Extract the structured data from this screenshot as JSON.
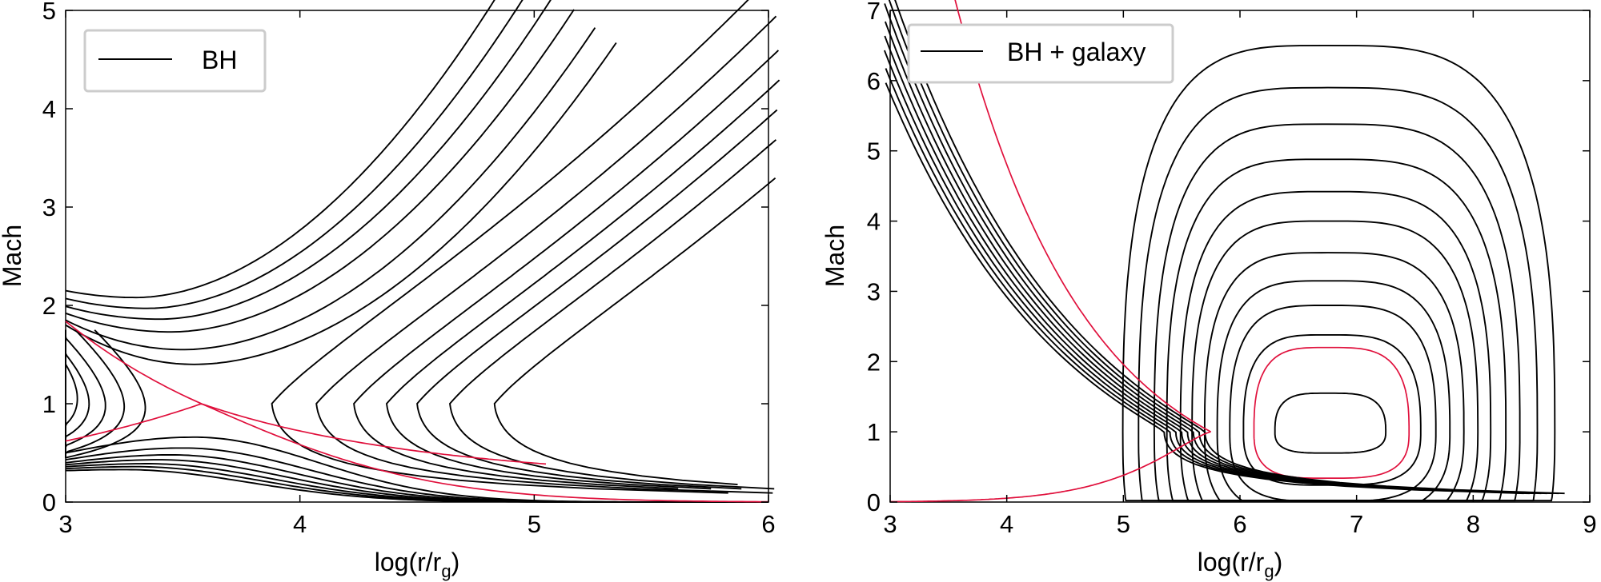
{
  "figure": {
    "panels": 2
  },
  "chart_data": [
    {
      "type": "line",
      "title": "",
      "xlabel": "log(r/r",
      "xlabel_sub": "g",
      "xlabel_close": ")",
      "ylabel": "Mach",
      "xlim": [
        3,
        6
      ],
      "ylim": [
        0,
        5
      ],
      "xticks": [
        "3",
        "4",
        "5",
        "6"
      ],
      "yticks": [
        "0",
        "1",
        "2",
        "3",
        "4",
        "5"
      ],
      "grid": false,
      "legend": {
        "position": "top-left",
        "entries": [
          "BH"
        ]
      },
      "colors": {
        "family": "#000000",
        "critical": "#e0103c"
      },
      "critical_point": {
        "x": 3.58,
        "y": 1.0
      },
      "series": [
        {
          "group": "inner-closed",
          "x0": 3.0,
          "m0": 1.1
        },
        {
          "group": "inner-closed",
          "x0": 3.05,
          "m0": 1.05
        },
        {
          "group": "inner-closed",
          "x0": 3.1,
          "m0": 1.0
        },
        {
          "group": "inner-closed",
          "x0": 3.17,
          "m0": 0.98
        },
        {
          "group": "inner-closed",
          "x0": 3.25,
          "m0": 0.97
        },
        {
          "group": "inner-closed",
          "x0": 3.34,
          "m0": 0.96
        },
        {
          "group": "outer-accretion",
          "x0": 3.88,
          "m0": 1.0
        },
        {
          "group": "outer-accretion",
          "x0": 4.07,
          "m0": 1.0
        },
        {
          "group": "outer-accretion",
          "x0": 4.23,
          "m0": 1.0
        },
        {
          "group": "outer-accretion",
          "x0": 4.37,
          "m0": 1.0
        },
        {
          "group": "outer-accretion",
          "x0": 4.5,
          "m0": 1.0
        },
        {
          "group": "outer-accretion",
          "x0": 4.64,
          "m0": 1.0
        },
        {
          "group": "outer-accretion",
          "x0": 4.83,
          "m0": 1.0
        },
        {
          "group": "top",
          "y0": 2.15,
          "xmin": 3.3,
          "ymin": 2.08,
          "xend": 4.85
        },
        {
          "group": "top",
          "y0": 2.07,
          "xmin": 3.35,
          "ymin": 1.97,
          "xend": 4.94
        },
        {
          "group": "top",
          "y0": 1.99,
          "xmin": 3.4,
          "ymin": 1.86,
          "xend": 5.03
        },
        {
          "group": "top",
          "y0": 1.92,
          "xmin": 3.45,
          "ymin": 1.73,
          "xend": 5.12
        },
        {
          "group": "top",
          "y0": 1.85,
          "xmin": 3.5,
          "ymin": 1.55,
          "xend": 5.21
        },
        {
          "group": "top",
          "y0": 1.8,
          "xmin": 3.55,
          "ymin": 1.4,
          "xend": 5.3
        },
        {
          "group": "bottom",
          "y0": 0.5,
          "peak": 0.66,
          "xp": 3.55
        },
        {
          "group": "bottom",
          "y0": 0.43,
          "peak": 0.55,
          "xp": 3.5
        },
        {
          "group": "bottom",
          "y0": 0.4,
          "peak": 0.48,
          "xp": 3.45
        },
        {
          "group": "bottom",
          "y0": 0.38,
          "peak": 0.43,
          "xp": 3.4
        },
        {
          "group": "bottom",
          "y0": 0.36,
          "peak": 0.39,
          "xp": 3.35
        },
        {
          "group": "bottom",
          "y0": 0.34,
          "peak": 0.36,
          "xp": 3.3
        },
        {
          "group": "bottom",
          "y0": 0.32,
          "peak": 0.33,
          "xp": 3.25
        }
      ]
    },
    {
      "type": "line",
      "title": "",
      "xlabel": "log(r/r",
      "xlabel_sub": "g",
      "xlabel_close": ")",
      "ylabel": "Mach",
      "xlim": [
        3,
        9
      ],
      "ylim": [
        0,
        7
      ],
      "xticks": [
        "3",
        "4",
        "5",
        "6",
        "7",
        "8",
        "9"
      ],
      "yticks": [
        "0",
        "1",
        "2",
        "3",
        "4",
        "5",
        "6",
        "7"
      ],
      "grid": false,
      "legend": {
        "position": "top-left",
        "entries": [
          "BH + galaxy"
        ]
      },
      "colors": {
        "family": "#000000",
        "critical": "#e0103c"
      },
      "critical_point": {
        "x": 5.75,
        "y": 1.0
      },
      "series": [
        {
          "group": "closed-loop",
          "top": 1.55,
          "right_x": 7.25
        },
        {
          "group": "closed-loop",
          "top": 2.2,
          "right_x": 7.45,
          "critical": true
        },
        {
          "group": "closed-loop",
          "top": 2.38,
          "right_x": 7.55
        },
        {
          "group": "closed-loop",
          "top": 2.8,
          "right_x": 7.68
        },
        {
          "group": "closed-loop",
          "top": 3.15,
          "right_x": 7.8
        },
        {
          "group": "closed-loop",
          "top": 3.55,
          "right_x": 7.92
        },
        {
          "group": "closed-loop",
          "top": 4.0,
          "right_x": 8.04
        },
        {
          "group": "closed-loop",
          "top": 4.42,
          "right_x": 8.15
        },
        {
          "group": "closed-loop",
          "top": 4.88,
          "right_x": 8.28
        },
        {
          "group": "closed-loop",
          "top": 5.38,
          "right_x": 8.4
        },
        {
          "group": "closed-loop",
          "top": 5.9,
          "right_x": 8.55
        },
        {
          "group": "closed-loop",
          "top": 6.5,
          "right_x": 8.7
        },
        {
          "group": "inner-branch",
          "x0": 5.35,
          "m0": 1.0
        },
        {
          "group": "inner-branch",
          "x0": 5.4,
          "m0": 1.0
        },
        {
          "group": "inner-branch",
          "x0": 5.45,
          "m0": 1.0
        },
        {
          "group": "inner-branch",
          "x0": 5.5,
          "m0": 1.0
        },
        {
          "group": "inner-branch",
          "x0": 5.55,
          "m0": 1.0
        },
        {
          "group": "inner-branch",
          "x0": 5.6,
          "m0": 1.0
        },
        {
          "group": "inner-branch",
          "x0": 5.65,
          "m0": 1.0
        },
        {
          "group": "inner-branch",
          "x0": 5.7,
          "m0": 1.0
        }
      ]
    }
  ]
}
